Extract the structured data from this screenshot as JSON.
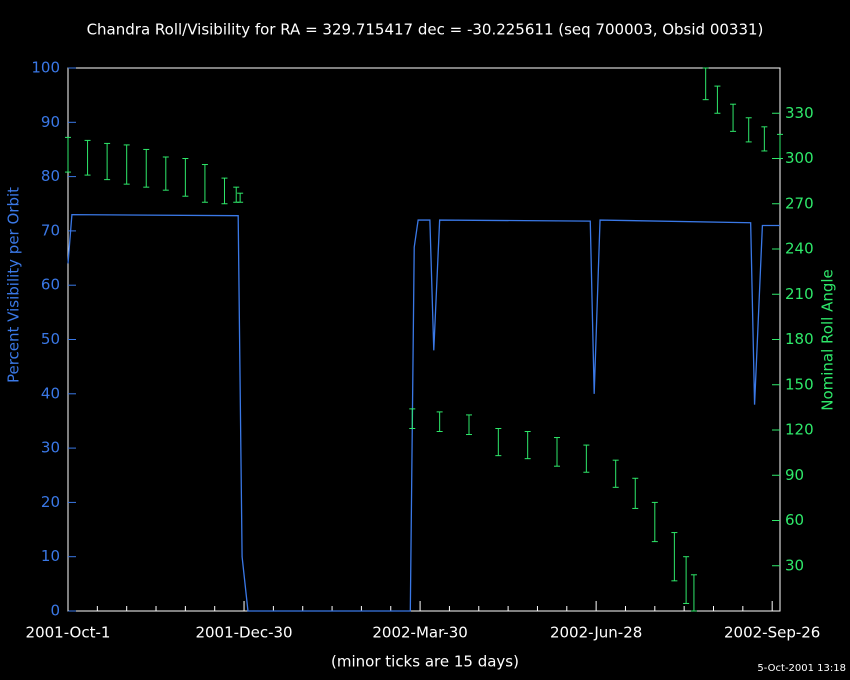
{
  "chart_data": {
    "type": "line",
    "title": "Chandra Roll/Visibility for RA = 329.715417 dec = -30.225611 (seq 700003, Obsid 00331)",
    "x_label": "(minor ticks are 15 days)",
    "y_label": "Percent Visibility per Orbit",
    "y2_label": "Nominal Roll Angle",
    "timestamp": "5-Oct-2001 13:18",
    "xlim": [
      "2001-10-01",
      "2002-09-30"
    ],
    "xticks": [
      {
        "value": "2001-10-01",
        "label": "2001-Oct-1"
      },
      {
        "value": "2001-12-30",
        "label": "2001-Dec-30"
      },
      {
        "value": "2002-03-30",
        "label": "2002-Mar-30"
      },
      {
        "value": "2002-06-28",
        "label": "2002-Jun-28"
      },
      {
        "value": "2002-09-26",
        "label": "2002-Sep-26"
      }
    ],
    "xminorticks": [
      "2001-10-16",
      "2001-10-31",
      "2001-11-15",
      "2001-11-30",
      "2001-12-15",
      "2002-01-14",
      "2002-01-29",
      "2002-02-13",
      "2002-02-28",
      "2002-03-15",
      "2002-04-14",
      "2002-04-29",
      "2002-05-14",
      "2002-05-29",
      "2002-06-13",
      "2002-07-13",
      "2002-07-28",
      "2002-08-12",
      "2002-08-27",
      "2002-09-11"
    ],
    "ylim": [
      0,
      100
    ],
    "yticks": [
      0,
      10,
      20,
      30,
      40,
      50,
      60,
      70,
      80,
      90,
      100
    ],
    "y2lim": [
      0,
      360
    ],
    "y2ticks": [
      30,
      60,
      90,
      120,
      150,
      180,
      210,
      240,
      270,
      300,
      330
    ],
    "series": [
      {
        "type": "line",
        "color": "#3a78e6",
        "x": [
          "2001-10-01",
          "2001-10-03",
          "2001-12-27",
          "2001-12-29",
          "2002-01-01",
          "2002-03-25",
          "2002-03-27",
          "2002-03-29",
          "2002-04-04",
          "2002-04-06",
          "2002-04-09",
          "2002-06-25",
          "2002-06-27",
          "2002-06-30",
          "2002-09-15",
          "2002-09-17",
          "2002-09-21",
          "2002-09-30"
        ],
        "values": [
          64,
          73,
          72.8,
          10,
          0,
          0,
          67,
          72,
          72,
          48,
          72,
          71.8,
          40,
          72,
          71.5,
          38,
          71,
          71
        ]
      },
      {
        "type": "errorbar",
        "axis": "y2",
        "color": "#2ee86a",
        "x": [
          "2001-10-01",
          "2001-10-11",
          "2001-10-21",
          "2001-10-31",
          "2001-11-10",
          "2001-11-20",
          "2001-11-30",
          "2001-12-10",
          "2001-12-20",
          "2001-12-26",
          "2001-12-28",
          "2002-03-26",
          "2002-04-09",
          "2002-04-24",
          "2002-05-09",
          "2002-05-24",
          "2002-06-08",
          "2002-06-23",
          "2002-07-08",
          "2002-07-18",
          "2002-07-28",
          "2002-08-07",
          "2002-08-13",
          "2002-08-17",
          "2002-08-23",
          "2002-08-29",
          "2002-09-06",
          "2002-09-14",
          "2002-09-22",
          "2002-09-30"
        ],
        "low": [
          291,
          289,
          286,
          283,
          281,
          279,
          275,
          271,
          270,
          271,
          271,
          121,
          119,
          117,
          103,
          101,
          96,
          92,
          82,
          68,
          46,
          20,
          5,
          0,
          339,
          330,
          318,
          311,
          305,
          300
        ],
        "high": [
          314,
          312,
          310,
          309,
          306,
          301,
          300,
          296,
          287,
          281,
          277,
          134,
          132,
          130,
          121,
          119,
          115,
          110,
          100,
          88,
          72,
          52,
          36,
          24,
          360,
          348,
          336,
          327,
          321,
          316
        ]
      }
    ]
  }
}
